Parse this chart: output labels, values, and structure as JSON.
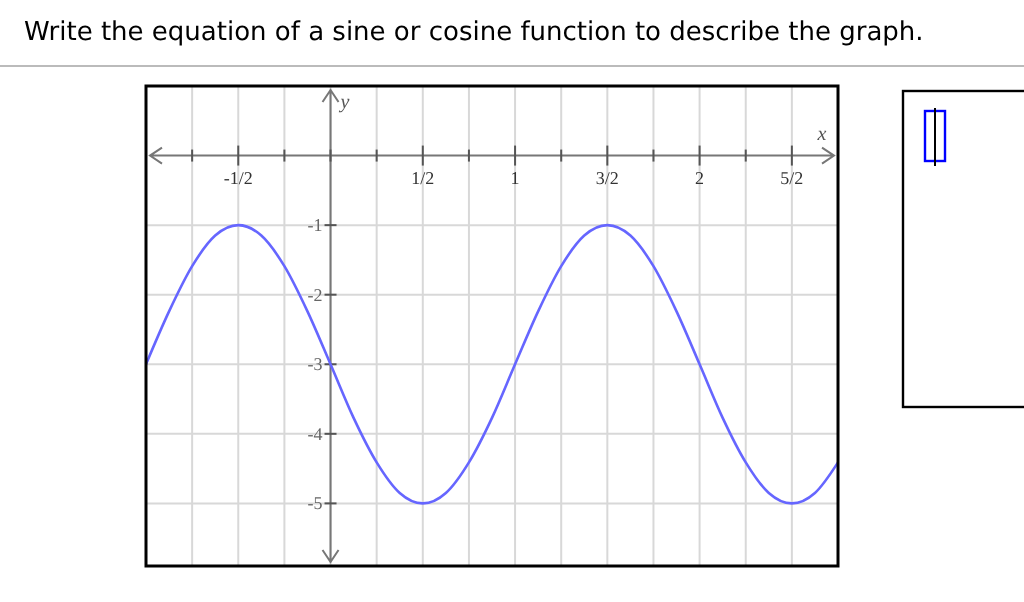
{
  "chart_data": {
    "type": "line",
    "title": "Write the equation of a sine or cosine function to describe the graph.",
    "xlabel": "x",
    "ylabel": "y",
    "x": [
      -1,
      -0.875,
      -0.75,
      -0.625,
      -0.5,
      -0.375,
      -0.25,
      -0.125,
      0,
      0.125,
      0.25,
      0.375,
      0.5,
      0.625,
      0.75,
      0.875,
      1,
      1.125,
      1.25,
      1.375,
      1.5,
      1.625,
      1.75,
      1.875,
      2,
      2.125,
      2.25,
      2.375,
      2.5,
      2.625,
      2.75
    ],
    "series": [
      {
        "color": "#6666ff",
        "values": [
          -3,
          -2.24,
          -1.59,
          -1.15,
          -1,
          -1.15,
          -1.59,
          -2.24,
          -3,
          -3.77,
          -4.41,
          -4.85,
          -5,
          -4.85,
          -4.41,
          -3.77,
          -3,
          -2.24,
          -1.59,
          -1.15,
          -1,
          -1.15,
          -1.59,
          -2.24,
          -3,
          -3.77,
          -4.41,
          -4.85,
          -5,
          -4.85,
          -4.41
        ]
      }
    ],
    "xlim": [
      -1,
      2.75
    ],
    "ylim": [
      -5.9,
      1
    ],
    "xticks": [
      {
        "value": -0.75,
        "label": null
      },
      {
        "value": -0.5,
        "label": "-1/2"
      },
      {
        "value": -0.25,
        "label": null
      },
      {
        "value": 0,
        "label": null
      },
      {
        "value": 0.25,
        "label": null
      },
      {
        "value": 0.5,
        "label": "1/2"
      },
      {
        "value": 0.75,
        "label": null
      },
      1,
      {
        "value": 1.25,
        "label": null
      },
      {
        "value": 1.5,
        "label": "3/2"
      },
      {
        "value": 1.75,
        "label": null
      },
      2,
      {
        "value": 2.25,
        "label": null
      },
      {
        "value": 2.5,
        "label": "5/2"
      }
    ],
    "yticks": [
      -1,
      -2,
      -3,
      -4,
      -5
    ],
    "grid": true,
    "marker": "none",
    "line_style": "solid"
  }
}
